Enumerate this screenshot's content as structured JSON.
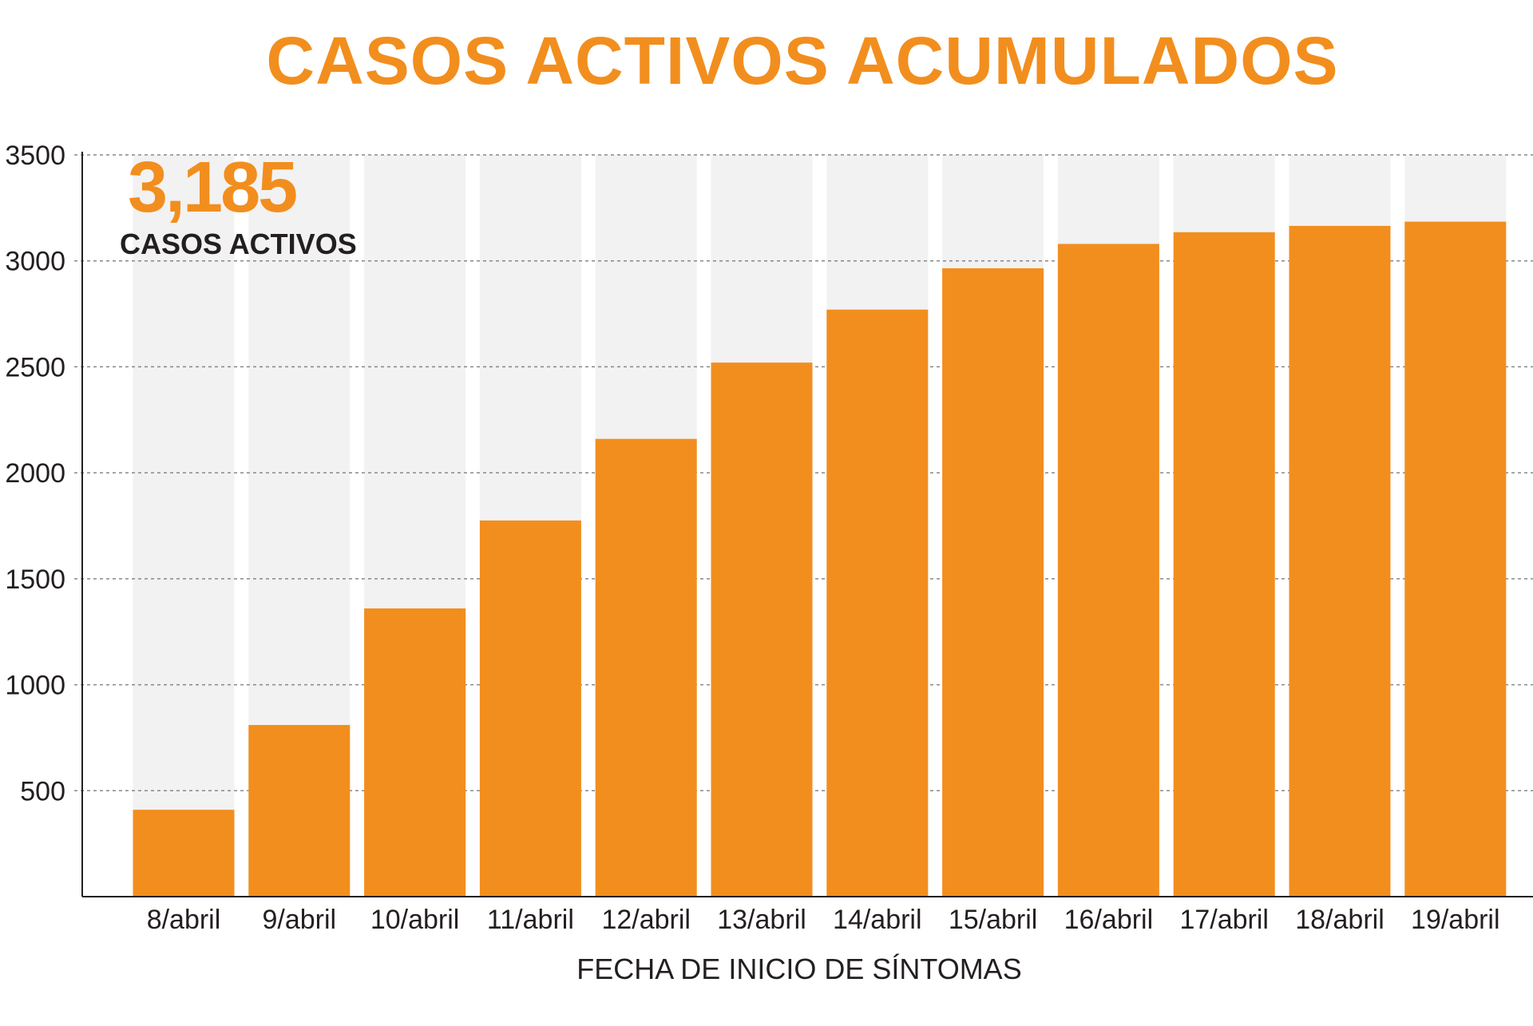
{
  "chart_data": {
    "type": "bar",
    "title": "CASOS ACTIVOS ACUMULADOS",
    "xlabel": "FECHA DE INICIO DE SÍNTOMAS",
    "ylabel": "",
    "categories": [
      "8/abril",
      "9/abril",
      "10/abril",
      "11/abril",
      "12/abril",
      "13/abril",
      "14/abril",
      "15/abril",
      "16/abril",
      "17/abril",
      "18/abril",
      "19/abril"
    ],
    "values": [
      410,
      810,
      1360,
      1775,
      2160,
      2520,
      2770,
      2965,
      3080,
      3135,
      3165,
      3185
    ],
    "ylim": [
      0,
      3500
    ],
    "yticks": [
      500,
      1000,
      1500,
      2000,
      2500,
      3000,
      3500
    ],
    "grid": true,
    "colors": {
      "bar": "#f28e1e",
      "column_background": "#f2f2f2",
      "grid": "#888888",
      "axis": "#231f20"
    },
    "annotation": {
      "value": "3,185",
      "label": "CASOS ACTIVOS"
    }
  }
}
